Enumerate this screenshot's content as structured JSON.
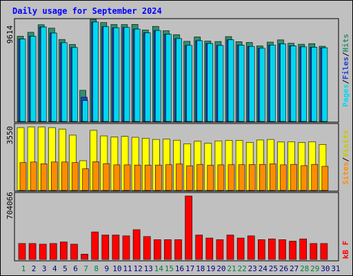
{
  "title": "Daily usage for September 2024",
  "colors": {
    "hits": "#2f8f6f",
    "files": "#2040d0",
    "pages": "#00d8f0",
    "visits": "#ffff00",
    "sites": "#ff8c00",
    "kbytes": "#ff0000",
    "title": "#0000ff"
  },
  "chart_data": [
    {
      "type": "bar",
      "title": "Daily usage for September 2024",
      "panel": "top",
      "ylabel_max": "9614",
      "ymax": 9614,
      "categories": [
        "1",
        "2",
        "3",
        "4",
        "5",
        "6",
        "7",
        "8",
        "9",
        "10",
        "11",
        "12",
        "13",
        "14",
        "15",
        "16",
        "17",
        "18",
        "19",
        "20",
        "21",
        "22",
        "23",
        "24",
        "25",
        "26",
        "27",
        "28",
        "29",
        "30",
        "31"
      ],
      "legend": [
        "Pages",
        "Files",
        "Hits"
      ],
      "series": [
        {
          "name": "Hits",
          "values": [
            8020,
            8390,
            9110,
            8780,
            7720,
            7250,
            2930,
            9610,
            9310,
            9130,
            9120,
            9140,
            8610,
            8950,
            8540,
            8170,
            7540,
            7960,
            7570,
            7530,
            7990,
            7510,
            7440,
            7110,
            7470,
            7680,
            7360,
            7270,
            7330,
            7080,
            0
          ]
        },
        {
          "name": "Files",
          "values": [
            7760,
            8020,
            8890,
            8320,
            7410,
            6960,
            2280,
            9360,
            8920,
            8820,
            8850,
            8700,
            8340,
            8560,
            8220,
            7800,
            7160,
            7600,
            7340,
            7150,
            7690,
            7180,
            7060,
            6890,
            7190,
            7310,
            7110,
            7020,
            6990,
            6940,
            0
          ]
        },
        {
          "name": "Pages",
          "values": [
            7760,
            8020,
            8890,
            8320,
            7410,
            6960,
            1960,
            9360,
            8920,
            8820,
            8850,
            8700,
            8340,
            8560,
            8220,
            7800,
            7160,
            7600,
            7340,
            7150,
            7690,
            7180,
            7060,
            6890,
            7190,
            7310,
            7110,
            7020,
            6990,
            6940,
            0
          ]
        }
      ]
    },
    {
      "type": "bar",
      "panel": "middle",
      "ylabel_max": "3550",
      "ymax": 3550,
      "categories": [
        "1",
        "2",
        "3",
        "4",
        "5",
        "6",
        "7",
        "8",
        "9",
        "10",
        "11",
        "12",
        "13",
        "14",
        "15",
        "16",
        "17",
        "18",
        "19",
        "20",
        "21",
        "22",
        "23",
        "24",
        "25",
        "26",
        "27",
        "28",
        "29",
        "30",
        "31"
      ],
      "legend": [
        "Sites",
        "Visits"
      ],
      "series": [
        {
          "name": "Visits",
          "values": [
            3510,
            3550,
            3550,
            3510,
            3430,
            3090,
            1660,
            3360,
            3050,
            2990,
            3020,
            2970,
            2920,
            2850,
            2870,
            2810,
            2610,
            2750,
            2640,
            2770,
            2800,
            2800,
            2690,
            2820,
            2850,
            2710,
            2730,
            2680,
            2720,
            2570,
            0
          ]
        },
        {
          "name": "Sites",
          "values": [
            1560,
            1590,
            1490,
            1590,
            1590,
            1560,
            1210,
            1610,
            1500,
            1430,
            1430,
            1420,
            1420,
            1420,
            1440,
            1480,
            1380,
            1460,
            1410,
            1430,
            1440,
            1440,
            1450,
            1460,
            1490,
            1430,
            1460,
            1390,
            1460,
            1350,
            0
          ]
        }
      ]
    },
    {
      "type": "bar",
      "panel": "bottom",
      "ylabel_max": "704066",
      "ymax": 704066,
      "categories": [
        "1",
        "2",
        "3",
        "4",
        "5",
        "6",
        "7",
        "8",
        "9",
        "10",
        "11",
        "12",
        "13",
        "14",
        "15",
        "16",
        "17",
        "18",
        "19",
        "20",
        "21",
        "22",
        "23",
        "24",
        "25",
        "26",
        "27",
        "28",
        "29",
        "30",
        "31"
      ],
      "legend": [
        "kB F"
      ],
      "series": [
        {
          "name": "kB F",
          "values": [
            177000,
            177000,
            169000,
            177000,
            194000,
            169000,
            59000,
            305000,
            271000,
            271000,
            262000,
            330000,
            254000,
            220000,
            220000,
            220000,
            704066,
            271000,
            237000,
            220000,
            271000,
            237000,
            262000,
            220000,
            228000,
            220000,
            203000,
            228000,
            177000,
            177000,
            0
          ]
        }
      ]
    }
  ],
  "day_label_colors": [
    "#008040",
    "#000080",
    "#000080",
    "#000080",
    "#000080",
    "#000080",
    "#008040",
    "#008040",
    "#000080",
    "#000080",
    "#000080",
    "#000080",
    "#000080",
    "#008040",
    "#008040",
    "#000080",
    "#000080",
    "#000080",
    "#000080",
    "#000080",
    "#008040",
    "#008040",
    "#000080",
    "#000080",
    "#000080",
    "#000080",
    "#000080",
    "#008040",
    "#008040",
    "#000080",
    "#000080"
  ]
}
